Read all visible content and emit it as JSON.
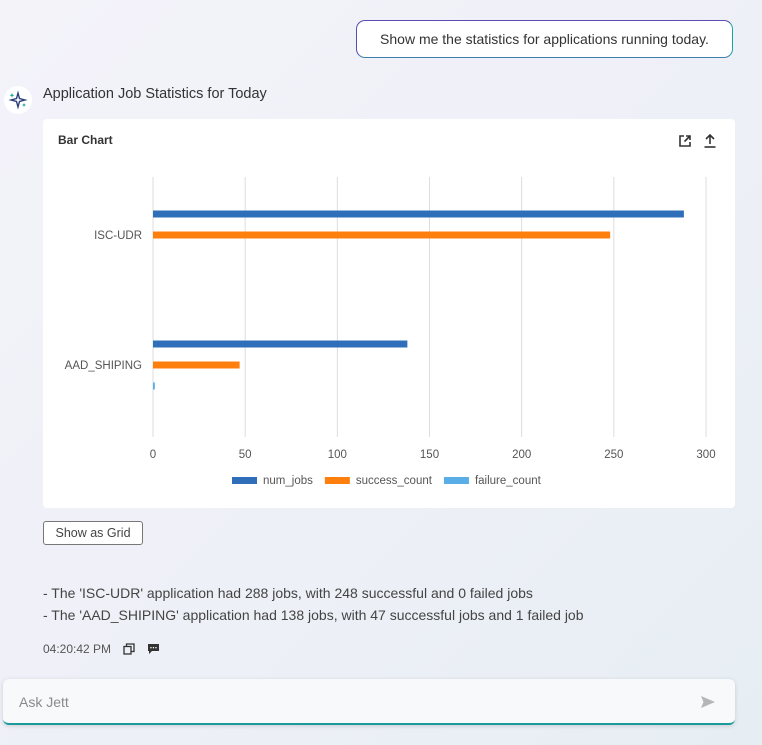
{
  "user_message": "Show me the statistics for applications running today.",
  "response": {
    "title": "Application Job Statistics for Today",
    "summary_lines": [
      "- The 'ISC-UDR' application had 288 jobs, with 248 successful and 0 failed jobs",
      "- The 'AAD_SHIPING' application had 138 jobs, with 47 successful jobs and 1 failed job"
    ],
    "timestamp": "04:20:42 PM",
    "show_grid_label": "Show as Grid"
  },
  "chart_card": {
    "title": "Bar Chart",
    "tools": [
      "open-external-icon",
      "share-upload-icon"
    ]
  },
  "input": {
    "placeholder": "Ask Jett"
  },
  "icons": {
    "avatar": "sparkle-bot-icon",
    "copy": "copy-icon",
    "feedback": "comment-icon",
    "send": "send-icon"
  },
  "colors": {
    "num_jobs": "#2f6fba",
    "success_count": "#ff7f0e",
    "failure_count": "#5aaee8",
    "accent": "#1a9a9a"
  },
  "chart_data": {
    "type": "bar",
    "orientation": "horizontal",
    "title": "",
    "categories": [
      "ISC-UDR",
      "AAD_SHIPING"
    ],
    "series": [
      {
        "name": "num_jobs",
        "values": [
          288,
          138
        ]
      },
      {
        "name": "success_count",
        "values": [
          248,
          47
        ]
      },
      {
        "name": "failure_count",
        "values": [
          0,
          1
        ]
      }
    ],
    "xlim": [
      0,
      300
    ],
    "xticks": [
      0,
      50,
      100,
      150,
      200,
      250,
      300
    ],
    "xlabel": "",
    "ylabel": "",
    "grid": true,
    "legend": "bottom"
  }
}
